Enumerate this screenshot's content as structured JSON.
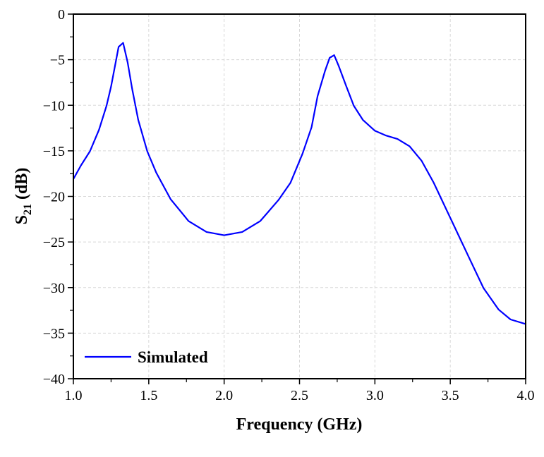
{
  "chart_data": {
    "type": "line",
    "title": "",
    "xlabel": "Frequency (GHz)",
    "ylabel_main": "S",
    "ylabel_sub": "21",
    "ylabel_unit": " (dB)",
    "xlim": [
      1.0,
      4.0
    ],
    "ylim": [
      -40,
      0
    ],
    "xticks": [
      "1.0",
      "1.5",
      "2.0",
      "2.5",
      "3.0",
      "3.5",
      "4.0"
    ],
    "yticks": [
      "0",
      "−5",
      "−10",
      "−15",
      "−20",
      "−25",
      "−30",
      "−35",
      "−40"
    ],
    "grid": true,
    "legend_position": "bottom-left",
    "series": [
      {
        "name": "Simulated",
        "color": "#0000ff",
        "x": [
          1.0,
          1.05,
          1.11,
          1.17,
          1.22,
          1.25,
          1.3,
          1.33,
          1.36,
          1.39,
          1.43,
          1.49,
          1.55,
          1.645,
          1.764,
          1.883,
          2.0,
          2.12,
          2.24,
          2.36,
          2.44,
          2.52,
          2.58,
          2.62,
          2.67,
          2.7,
          2.73,
          2.76,
          2.81,
          2.86,
          2.92,
          3.0,
          3.07,
          3.15,
          3.23,
          3.31,
          3.39,
          3.51,
          3.63,
          3.72,
          3.82,
          3.9,
          4.0
        ],
        "y": [
          -18.1,
          -16.6,
          -15.05,
          -12.7,
          -10.05,
          -7.95,
          -3.6,
          -3.16,
          -5.3,
          -8.2,
          -11.6,
          -15.05,
          -17.4,
          -20.3,
          -22.7,
          -23.9,
          -24.26,
          -23.9,
          -22.7,
          -20.4,
          -18.5,
          -15.3,
          -12.4,
          -9.0,
          -6.2,
          -4.8,
          -4.5,
          -5.7,
          -7.9,
          -10.05,
          -11.6,
          -12.8,
          -13.3,
          -13.7,
          -14.5,
          -16.1,
          -18.5,
          -22.7,
          -26.9,
          -30.05,
          -32.4,
          -33.5,
          -34.0
        ]
      }
    ]
  }
}
